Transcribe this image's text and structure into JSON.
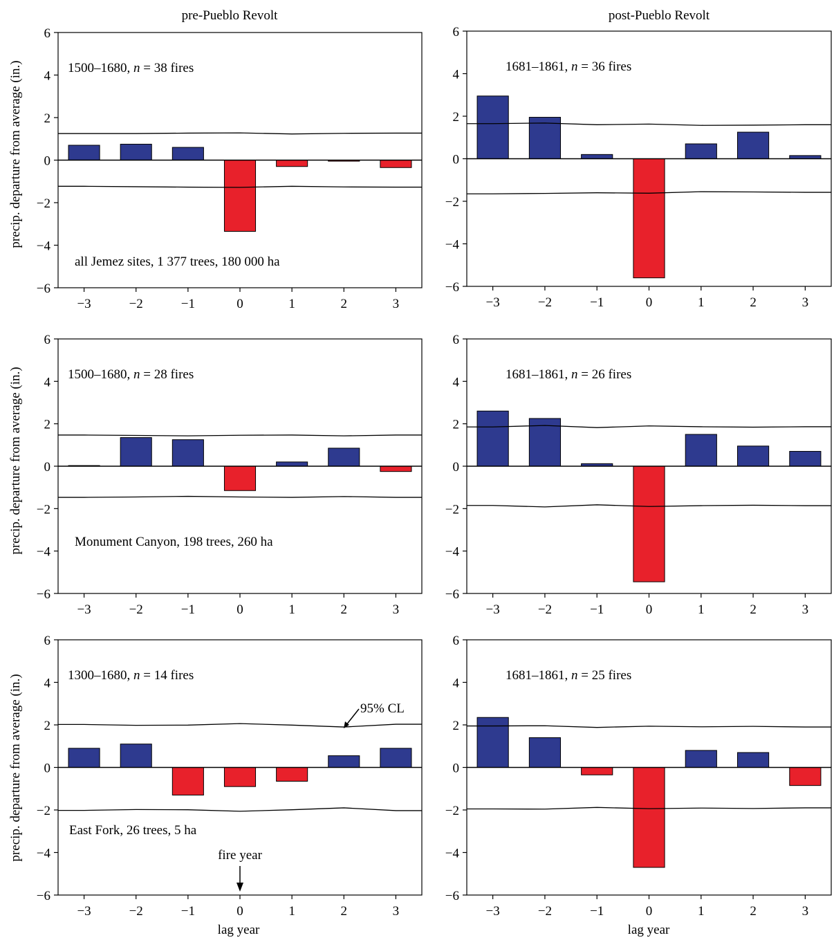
{
  "figure": {
    "column_titles": [
      "pre-Pueblo Revolt",
      "post-Pueblo Revolt"
    ],
    "ylabel": "precip. departure from average (in.)",
    "xlabel": "lag year",
    "annotations": {
      "cl_label": "95% CL",
      "fire_year_label": "fire year"
    }
  },
  "colors": {
    "positive_bar": "#2e3a8f",
    "negative_bar": "#e8212b",
    "axis": "#000000"
  },
  "chart_data": [
    {
      "type": "bar",
      "period_label": "1500–1680, ",
      "n_label": "n",
      "fires_label": " = 38 fires",
      "site_label": "all Jemez sites, 1 377 trees, 180 000 ha",
      "categories": [
        "−3",
        "−2",
        "−1",
        "0",
        "1",
        "2",
        "3"
      ],
      "x": [
        -3,
        -2,
        -1,
        0,
        1,
        2,
        3
      ],
      "values": [
        0.7,
        0.75,
        0.6,
        -3.35,
        -0.3,
        -0.05,
        -0.35
      ],
      "cl_upper": [
        1.25,
        1.25,
        1.27,
        1.28,
        1.23,
        1.26,
        1.27
      ],
      "cl_lower": [
        -1.23,
        -1.25,
        -1.27,
        -1.28,
        -1.23,
        -1.26,
        -1.27
      ],
      "ylim": [
        -6,
        6
      ],
      "yticks": [
        -6,
        -4,
        -2,
        0,
        2,
        4,
        6
      ],
      "ytick_labels": [
        "−6",
        "−4",
        "−2",
        "0",
        "2",
        "4",
        "6"
      ]
    },
    {
      "type": "bar",
      "period_label": "1681–1861, ",
      "n_label": "n",
      "fires_label": " = 36 fires",
      "site_label": "",
      "categories": [
        "−3",
        "−2",
        "−1",
        "0",
        "1",
        "2",
        "3"
      ],
      "x": [
        -3,
        -2,
        -1,
        0,
        1,
        2,
        3
      ],
      "values": [
        2.95,
        1.95,
        0.2,
        -5.6,
        0.7,
        1.25,
        0.15
      ],
      "cl_upper": [
        1.65,
        1.68,
        1.6,
        1.63,
        1.57,
        1.58,
        1.6
      ],
      "cl_lower": [
        -1.65,
        -1.63,
        -1.6,
        -1.62,
        -1.55,
        -1.56,
        -1.58
      ],
      "ylim": [
        -6,
        6
      ],
      "yticks": [
        -6,
        -4,
        -2,
        0,
        2,
        4,
        6
      ],
      "ytick_labels": [
        "−6",
        "−4",
        "−2",
        "0",
        "2",
        "4",
        "6"
      ]
    },
    {
      "type": "bar",
      "period_label": "1500–1680, ",
      "n_label": "n",
      "fires_label": " = 28 fires",
      "site_label": "Monument Canyon, 198 trees, 260 ha",
      "categories": [
        "−3",
        "−2",
        "−1",
        "0",
        "1",
        "2",
        "3"
      ],
      "x": [
        -3,
        -2,
        -1,
        0,
        1,
        2,
        3
      ],
      "values": [
        0.03,
        1.35,
        1.25,
        -1.15,
        0.2,
        0.85,
        -0.25
      ],
      "cl_upper": [
        1.47,
        1.45,
        1.43,
        1.46,
        1.47,
        1.43,
        1.47
      ],
      "cl_lower": [
        -1.47,
        -1.45,
        -1.42,
        -1.45,
        -1.47,
        -1.43,
        -1.47
      ],
      "ylim": [
        -6,
        6
      ],
      "yticks": [
        -6,
        -4,
        -2,
        0,
        2,
        4,
        6
      ],
      "ytick_labels": [
        "−6",
        "−4",
        "−2",
        "0",
        "2",
        "4",
        "6"
      ]
    },
    {
      "type": "bar",
      "period_label": "1681–1861, ",
      "n_label": "n",
      "fires_label": " = 26 fires",
      "site_label": "",
      "categories": [
        "−3",
        "−2",
        "−1",
        "0",
        "1",
        "2",
        "3"
      ],
      "x": [
        -3,
        -2,
        -1,
        0,
        1,
        2,
        3
      ],
      "values": [
        2.6,
        2.25,
        0.12,
        -5.45,
        1.5,
        0.95,
        0.7
      ],
      "cl_upper": [
        1.85,
        1.92,
        1.82,
        1.9,
        1.86,
        1.84,
        1.86
      ],
      "cl_lower": [
        -1.85,
        -1.92,
        -1.82,
        -1.9,
        -1.86,
        -1.84,
        -1.86
      ],
      "ylim": [
        -6,
        6
      ],
      "yticks": [
        -6,
        -4,
        -2,
        0,
        2,
        4,
        6
      ],
      "ytick_labels": [
        "−6",
        "−4",
        "−2",
        "0",
        "2",
        "4",
        "6"
      ]
    },
    {
      "type": "bar",
      "period_label": "1300–1680, ",
      "n_label": "n",
      "fires_label": " = 14 fires",
      "site_label": "East Fork, 26 trees, 5 ha",
      "categories": [
        "−3",
        "−2",
        "−1",
        "0",
        "1",
        "2",
        "3"
      ],
      "x": [
        -3,
        -2,
        -1,
        0,
        1,
        2,
        3
      ],
      "values": [
        0.9,
        1.1,
        -1.3,
        -0.9,
        -0.65,
        0.55,
        0.9
      ],
      "cl_upper": [
        2.02,
        1.98,
        1.99,
        2.06,
        1.99,
        1.9,
        2.03
      ],
      "cl_lower": [
        -2.02,
        -1.98,
        -1.99,
        -2.06,
        -1.99,
        -1.9,
        -2.03
      ],
      "ylim": [
        -6,
        6
      ],
      "yticks": [
        -6,
        -4,
        -2,
        0,
        2,
        4,
        6
      ],
      "ytick_labels": [
        "−6",
        "−4",
        "−2",
        "0",
        "2",
        "4",
        "6"
      ]
    },
    {
      "type": "bar",
      "period_label": "1681–1861, ",
      "n_label": "n",
      "fires_label": " = 25 fires",
      "site_label": "",
      "categories": [
        "−3",
        "−2",
        "−1",
        "0",
        "1",
        "2",
        "3"
      ],
      "x": [
        -3,
        -2,
        -1,
        0,
        1,
        2,
        3
      ],
      "values": [
        2.35,
        1.4,
        -0.35,
        -4.7,
        0.8,
        0.7,
        -0.85
      ],
      "cl_upper": [
        1.95,
        1.96,
        1.88,
        1.94,
        1.91,
        1.93,
        1.9
      ],
      "cl_lower": [
        -1.95,
        -1.96,
        -1.88,
        -1.94,
        -1.91,
        -1.93,
        -1.9
      ],
      "ylim": [
        -6,
        6
      ],
      "yticks": [
        -6,
        -4,
        -2,
        0,
        2,
        4,
        6
      ],
      "ytick_labels": [
        "−6",
        "−4",
        "−2",
        "0",
        "2",
        "4",
        "6"
      ]
    }
  ]
}
